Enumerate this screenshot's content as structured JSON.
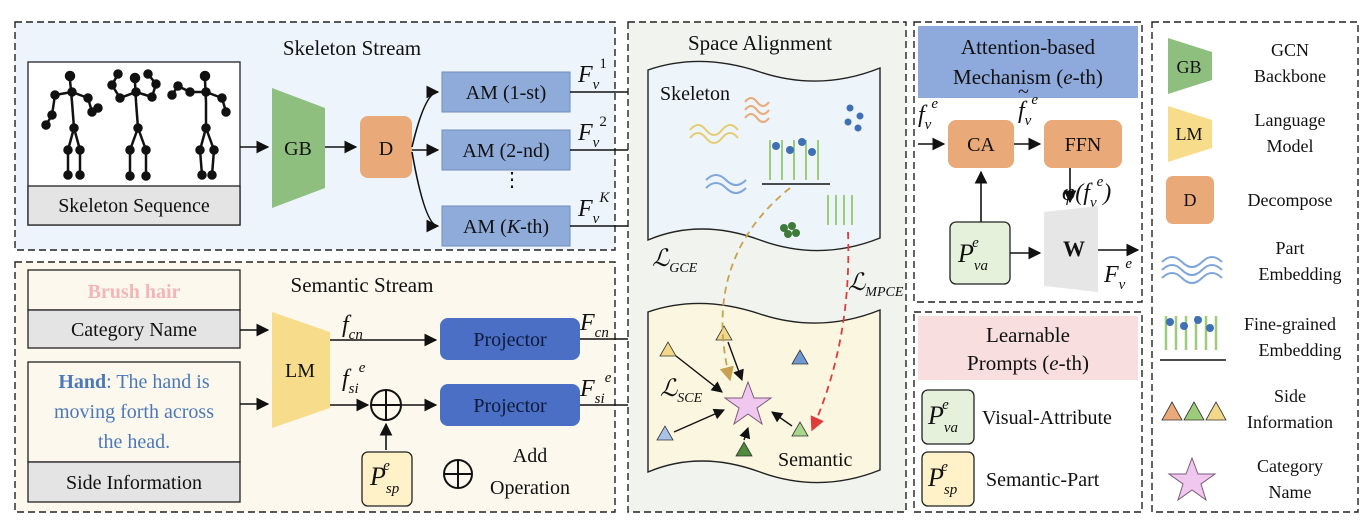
{
  "skeleton_stream": {
    "title": "Skeleton Stream",
    "sequence_label": "Skeleton Sequence",
    "gb_label": "GB",
    "d_label": "D",
    "am": [
      "AM (1-st)",
      "AM (2-nd)",
      "⋮",
      "AM (K-th)"
    ],
    "features": [
      "F_v^1",
      "F_v^2",
      "F_v^K"
    ]
  },
  "semantic_stream": {
    "title": "Semantic Stream",
    "example_category": "Brush hair",
    "category_label": "Category Name",
    "side_info_bold": "Hand",
    "side_info_rest": ": The hand is moving forth across the head.",
    "side_info_line1_rest": ": The hand is",
    "side_info_line2": "moving forth across",
    "side_info_line3": "the head.",
    "side_info_label": "Side Information",
    "lm_label": "LM",
    "f_cn": "f_cn",
    "f_si": "f_si^e",
    "projector_label": "Projector",
    "F_cn": "F_cn",
    "F_si": "F_si^e",
    "p_sp": "P_sp^e",
    "add_label_1": "Add",
    "add_label_2": "Operation"
  },
  "space_alignment": {
    "title": "Space Alignment",
    "skeleton_label": "Skeleton",
    "semantic_label": "Semantic",
    "loss_gce": "L_GCE",
    "loss_mpce": "L_MPCE",
    "loss_sce": "L_SCE"
  },
  "attention": {
    "title_line1": "Attention-based",
    "title_line2": "Mechanism (e-th)",
    "ca_label": "CA",
    "ffn_label": "FFN",
    "w_label": "W",
    "f_in": "f_v^e",
    "f_tilde": "f̃_v^e",
    "phi": "φ(f̃_v^e)",
    "F_out": "F_v^e",
    "p_va": "P_va^e"
  },
  "prompts": {
    "title_line1": "Learnable",
    "title_line2": "Prompts (e-th)",
    "visual_attribute": "Visual-Attribute",
    "semantic_part": "Semantic-Part"
  },
  "legend": {
    "gb": "GB",
    "gcn_1": "GCN",
    "gcn_2": "Backbone",
    "lm": "LM",
    "language_1": "Language",
    "language_2": "Model",
    "d": "D",
    "decompose": "Decompose",
    "part_1": "Part",
    "part_2": "Embedding",
    "fine_1": "Fine-grained",
    "fine_2": "Embedding",
    "side_1": "Side",
    "side_2": "Information",
    "cat_1": "Category",
    "cat_2": "Name"
  },
  "colors": {
    "skeleton_bg": "#eef4fb",
    "semantic_bg": "#fdf8ee",
    "alignment_bg": "#f1f4ee",
    "gb_green": "#8fbf7f",
    "lm_yellow": "#f7dc8c",
    "d_orange": "#e9a978",
    "am_blue": "#8fabd9",
    "projector_blue": "#4a6fc4",
    "attention_title": "#8ea9db",
    "prompts_title": "#f8dede",
    "prompt_green": "#e6f1dc",
    "prompt_yellow": "#fff2c9",
    "side_info_text": "#4a78b8",
    "category_text": "#f3b6b6",
    "star_pink": "#f0c8ef",
    "mpce_red": "#e03a3a",
    "gce_gold": "#c8a050"
  }
}
